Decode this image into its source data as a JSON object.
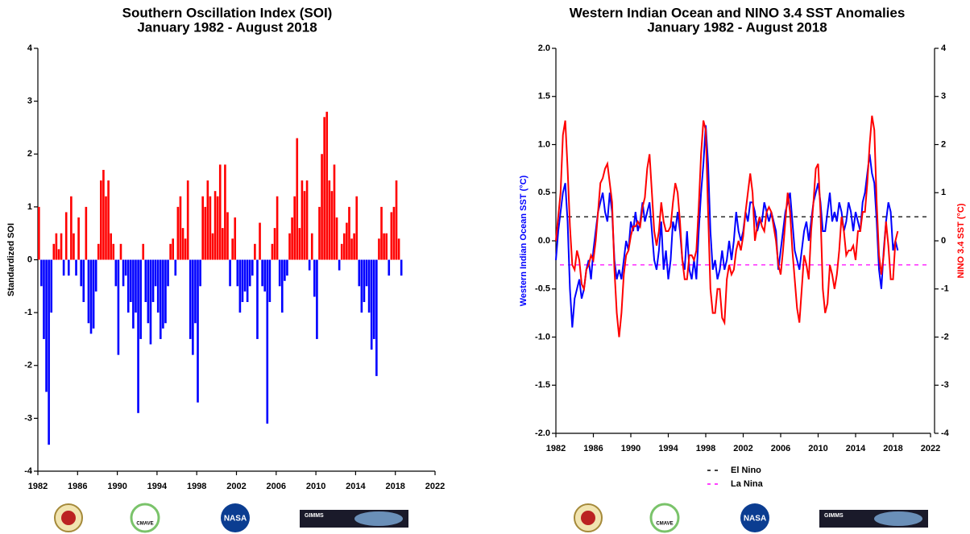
{
  "chart_data": [
    {
      "type": "bar",
      "title": "Southern Oscillation Index (SOI)",
      "subtitle": "January 1982 - August 2018",
      "ylabel": "Standardized SOI",
      "positive_color": "#ff0000",
      "negative_color": "#0000ff",
      "xlim": [
        1982,
        2022
      ],
      "xticks": [
        1982,
        1986,
        1990,
        1994,
        1998,
        2002,
        2006,
        2010,
        2014,
        2018,
        2022
      ],
      "ylim": [
        -4,
        4
      ],
      "yticks": [
        4,
        3,
        2,
        1,
        0,
        -1,
        -2,
        -3,
        -4
      ],
      "x": [
        1982,
        1982.25,
        1982.5,
        1982.75,
        1983,
        1983.25,
        1983.5,
        1983.75,
        1984,
        1984.25,
        1984.5,
        1984.75,
        1985,
        1985.25,
        1985.5,
        1985.75,
        1986,
        1986.25,
        1986.5,
        1986.75,
        1987,
        1987.25,
        1987.5,
        1987.75,
        1988,
        1988.25,
        1988.5,
        1988.75,
        1989,
        1989.25,
        1989.5,
        1989.75,
        1990,
        1990.25,
        1990.5,
        1990.75,
        1991,
        1991.25,
        1991.5,
        1991.75,
        1992,
        1992.25,
        1992.5,
        1992.75,
        1993,
        1993.25,
        1993.5,
        1993.75,
        1994,
        1994.25,
        1994.5,
        1994.75,
        1995,
        1995.25,
        1995.5,
        1995.75,
        1996,
        1996.25,
        1996.5,
        1996.75,
        1997,
        1997.25,
        1997.5,
        1997.75,
        1998,
        1998.25,
        1998.5,
        1998.75,
        1999,
        1999.25,
        1999.5,
        1999.75,
        2000,
        2000.25,
        2000.5,
        2000.75,
        2001,
        2001.25,
        2001.5,
        2001.75,
        2002,
        2002.25,
        2002.5,
        2002.75,
        2003,
        2003.25,
        2003.5,
        2003.75,
        2004,
        2004.25,
        2004.5,
        2004.75,
        2005,
        2005.25,
        2005.5,
        2005.75,
        2006,
        2006.25,
        2006.5,
        2006.75,
        2007,
        2007.25,
        2007.5,
        2007.75,
        2008,
        2008.25,
        2008.5,
        2008.75,
        2009,
        2009.25,
        2009.5,
        2009.75,
        2010,
        2010.25,
        2010.5,
        2010.75,
        2011,
        2011.25,
        2011.5,
        2011.75,
        2012,
        2012.25,
        2012.5,
        2012.75,
        2013,
        2013.25,
        2013.5,
        2013.75,
        2014,
        2014.25,
        2014.5,
        2014.75,
        2015,
        2015.25,
        2015.5,
        2015.75,
        2016,
        2016.25,
        2016.5,
        2016.75,
        2017,
        2017.25,
        2017.5,
        2017.75,
        2018,
        2018.25,
        2018.5
      ],
      "values": [
        1.0,
        -0.5,
        -1.5,
        -2.5,
        -3.5,
        -1.0,
        0.3,
        0.5,
        0.2,
        0.5,
        -0.3,
        0.9,
        -0.3,
        1.2,
        0.5,
        -0.3,
        0.8,
        -0.5,
        -0.8,
        1.0,
        -1.2,
        -1.4,
        -1.3,
        -0.6,
        0.3,
        1.5,
        1.7,
        1.2,
        1.5,
        0.5,
        0.3,
        -0.5,
        -1.8,
        0.3,
        -0.5,
        -0.3,
        -1.0,
        -0.8,
        -1.3,
        -1.0,
        -2.9,
        -1.5,
        0.3,
        -0.8,
        -1.2,
        -1.6,
        -0.8,
        -0.5,
        -1.0,
        -1.5,
        -1.3,
        -1.2,
        -0.5,
        0.3,
        0.4,
        -0.3,
        1.0,
        1.2,
        0.6,
        0.4,
        1.5,
        -1.5,
        -1.8,
        -1.2,
        -2.7,
        -0.5,
        1.2,
        1.0,
        1.5,
        1.2,
        0.5,
        1.3,
        1.2,
        1.8,
        0.6,
        1.8,
        0.9,
        -0.5,
        0.4,
        0.8,
        -0.5,
        -1.0,
        -0.8,
        -0.6,
        -0.8,
        -0.5,
        -0.3,
        0.3,
        -1.5,
        0.7,
        -0.5,
        -0.6,
        -3.1,
        -0.8,
        0.3,
        0.6,
        1.2,
        -0.5,
        -1.0,
        -0.4,
        -0.3,
        0.5,
        0.8,
        1.2,
        2.3,
        0.6,
        1.5,
        1.3,
        1.5,
        -0.2,
        0.5,
        -0.7,
        -1.5,
        1.0,
        2.0,
        2.7,
        2.8,
        1.5,
        1.3,
        1.8,
        0.8,
        -0.2,
        0.3,
        0.5,
        0.7,
        1.0,
        0.4,
        0.5,
        1.2,
        -0.5,
        -1.0,
        -0.8,
        -0.5,
        -1.0,
        -1.7,
        -1.5,
        -2.2,
        0.4,
        1.0,
        0.5,
        0.5,
        -0.3,
        0.9,
        1.0,
        1.5,
        0.4,
        -0.3
      ]
    },
    {
      "type": "line",
      "title": "Western Indian Ocean and NINO 3.4 SST Anomalies",
      "subtitle": "January 1982 - August 2018",
      "xlim": [
        1982,
        2022
      ],
      "xticks": [
        1982,
        1986,
        1990,
        1994,
        1998,
        2002,
        2006,
        2010,
        2014,
        2018,
        2022
      ],
      "ylim": [
        -2,
        2
      ],
      "yticks": [
        {
          "value": 2,
          "label": "2.0"
        },
        1.5,
        {
          "value": 1,
          "label": "1.0"
        },
        0.5,
        {
          "value": 0,
          "label": "0.0"
        },
        -0.5,
        {
          "value": -1,
          "label": "-1.0"
        },
        -1.5,
        {
          "value": -2,
          "label": "-2.0"
        }
      ],
      "y2lim": [
        -4,
        4
      ],
      "y2ticks": [
        4,
        3,
        2,
        1,
        0,
        -1,
        -2,
        -3,
        -4
      ],
      "x": [
        1982,
        1982.25,
        1982.5,
        1982.75,
        1983,
        1983.25,
        1983.5,
        1983.75,
        1984,
        1984.25,
        1984.5,
        1984.75,
        1985,
        1985.25,
        1985.5,
        1985.75,
        1986,
        1986.25,
        1986.5,
        1986.75,
        1987,
        1987.25,
        1987.5,
        1987.75,
        1988,
        1988.25,
        1988.5,
        1988.75,
        1989,
        1989.25,
        1989.5,
        1989.75,
        1990,
        1990.25,
        1990.5,
        1990.75,
        1991,
        1991.25,
        1991.5,
        1991.75,
        1992,
        1992.25,
        1992.5,
        1992.75,
        1993,
        1993.25,
        1993.5,
        1993.75,
        1994,
        1994.25,
        1994.5,
        1994.75,
        1995,
        1995.25,
        1995.5,
        1995.75,
        1996,
        1996.25,
        1996.5,
        1996.75,
        1997,
        1997.25,
        1997.5,
        1997.75,
        1998,
        1998.25,
        1998.5,
        1998.75,
        1999,
        1999.25,
        1999.5,
        1999.75,
        2000,
        2000.25,
        2000.5,
        2000.75,
        2001,
        2001.25,
        2001.5,
        2001.75,
        2002,
        2002.25,
        2002.5,
        2002.75,
        2003,
        2003.25,
        2003.5,
        2003.75,
        2004,
        2004.25,
        2004.5,
        2004.75,
        2005,
        2005.25,
        2005.5,
        2005.75,
        2006,
        2006.25,
        2006.5,
        2006.75,
        2007,
        2007.25,
        2007.5,
        2007.75,
        2008,
        2008.25,
        2008.5,
        2008.75,
        2009,
        2009.25,
        2009.5,
        2009.75,
        2010,
        2010.25,
        2010.5,
        2010.75,
        2011,
        2011.25,
        2011.5,
        2011.75,
        2012,
        2012.25,
        2012.5,
        2012.75,
        2013,
        2013.25,
        2013.5,
        2013.75,
        2014,
        2014.25,
        2014.5,
        2014.75,
        2015,
        2015.25,
        2015.5,
        2015.75,
        2016,
        2016.25,
        2016.5,
        2016.75,
        2017,
        2017.25,
        2017.5,
        2017.75,
        2018,
        2018.25,
        2018.5
      ],
      "series": [
        {
          "name": "Western Indian Ocean SST (°C)",
          "color": "#0000ff",
          "axis": "y",
          "values": [
            -0.2,
            0.1,
            0.3,
            0.5,
            0.6,
            0.2,
            -0.5,
            -0.9,
            -0.6,
            -0.5,
            -0.4,
            -0.6,
            -0.5,
            -0.3,
            -0.2,
            -0.4,
            -0.1,
            0.1,
            0.3,
            0.4,
            0.5,
            0.3,
            0.2,
            0.5,
            0.3,
            -0.2,
            -0.4,
            -0.3,
            -0.4,
            -0.2,
            0.0,
            -0.1,
            0.2,
            0.1,
            0.3,
            0.1,
            0.2,
            0.4,
            0.2,
            0.3,
            0.4,
            0.1,
            -0.2,
            -0.3,
            -0.1,
            0.2,
            -0.3,
            -0.1,
            -0.4,
            -0.2,
            0.2,
            0.1,
            0.3,
            0.1,
            -0.2,
            -0.3,
            0.1,
            -0.3,
            -0.4,
            -0.2,
            -0.4,
            0.1,
            0.5,
            0.8,
            1.2,
            0.8,
            0.1,
            -0.3,
            -0.2,
            -0.4,
            -0.3,
            -0.1,
            -0.3,
            -0.2,
            0.0,
            -0.2,
            0.0,
            0.3,
            0.1,
            0.0,
            0.1,
            0.3,
            0.2,
            0.4,
            0.4,
            0.3,
            0.1,
            0.2,
            0.2,
            0.4,
            0.3,
            0.2,
            0.3,
            0.2,
            0.1,
            -0.3,
            -0.1,
            0.1,
            0.3,
            0.4,
            0.5,
            0.2,
            -0.1,
            -0.2,
            -0.3,
            -0.1,
            0.1,
            0.2,
            0.0,
            0.2,
            0.4,
            0.5,
            0.6,
            0.4,
            0.1,
            0.1,
            0.3,
            0.5,
            0.2,
            0.3,
            0.2,
            0.4,
            0.3,
            0.1,
            0.2,
            0.4,
            0.3,
            0.1,
            0.3,
            0.2,
            0.1,
            0.4,
            0.5,
            0.7,
            0.9,
            0.7,
            0.6,
            0.2,
            -0.3,
            -0.5,
            -0.1,
            0.2,
            0.4,
            0.3,
            -0.1,
            0.0,
            -0.1
          ]
        },
        {
          "name": "NINO 3.4 SST (°C)",
          "color": "#ff0000",
          "axis": "y2",
          "values": [
            0.0,
            0.5,
            1.0,
            2.2,
            2.5,
            1.5,
            0.3,
            -0.5,
            -0.6,
            -0.2,
            -0.4,
            -0.9,
            -1.0,
            -0.6,
            -0.5,
            -0.3,
            -0.4,
            0.0,
            0.6,
            1.2,
            1.3,
            1.5,
            1.6,
            1.2,
            0.8,
            -0.6,
            -1.5,
            -2.0,
            -1.5,
            -0.7,
            -0.3,
            -0.2,
            0.1,
            0.3,
            0.3,
            0.4,
            0.3,
            0.7,
            0.9,
            1.5,
            1.8,
            1.0,
            0.2,
            -0.1,
            0.2,
            0.8,
            0.4,
            0.2,
            0.2,
            0.3,
            0.8,
            1.2,
            1.0,
            0.4,
            -0.4,
            -0.8,
            -0.8,
            -0.3,
            -0.3,
            -0.4,
            -0.2,
            0.7,
            1.8,
            2.5,
            2.3,
            0.6,
            -1.0,
            -1.5,
            -1.5,
            -1.0,
            -1.0,
            -1.6,
            -1.7,
            -0.8,
            -0.5,
            -0.7,
            -0.6,
            -0.2,
            0.0,
            -0.2,
            0.1,
            0.6,
            1.0,
            1.4,
            1.0,
            0.0,
            0.3,
            0.5,
            0.3,
            0.2,
            0.6,
            0.7,
            0.6,
            0.3,
            0.0,
            -0.5,
            -0.7,
            -0.2,
            0.4,
            1.0,
            0.6,
            -0.2,
            -0.8,
            -1.4,
            -1.7,
            -1.0,
            -0.3,
            -0.5,
            -0.8,
            0.2,
            0.8,
            1.5,
            1.6,
            0.6,
            -1.0,
            -1.5,
            -1.3,
            -0.5,
            -0.7,
            -1.0,
            -0.7,
            -0.2,
            0.5,
            0.2,
            -0.3,
            -0.2,
            -0.2,
            -0.1,
            -0.4,
            0.2,
            0.2,
            0.6,
            0.6,
            1.2,
            2.0,
            2.6,
            2.3,
            0.8,
            -0.3,
            -0.7,
            -0.3,
            0.4,
            -0.1,
            -0.8,
            -0.8,
            0.0,
            0.2
          ]
        }
      ],
      "thresholds": [
        {
          "name": "El Nino",
          "value": 0.25,
          "color": "#000000"
        },
        {
          "name": "La Nina",
          "value": -0.25,
          "color": "#ff00ff"
        }
      ]
    }
  ],
  "logos": {
    "cmave": "CMAVE",
    "nasa": "NASA",
    "gimms": "GIMMS"
  }
}
